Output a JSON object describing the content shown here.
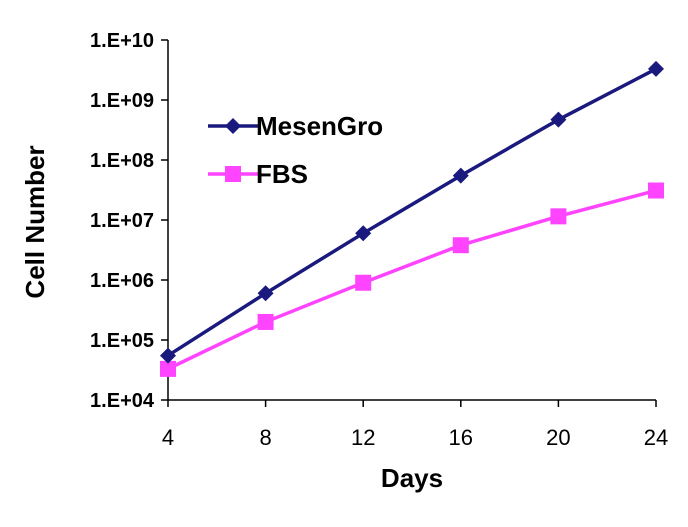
{
  "chart_data": {
    "type": "line",
    "title": "",
    "xlabel": "Days",
    "ylabel": "Cell Number",
    "yscale": "log",
    "xlim": [
      4,
      24
    ],
    "ylim": [
      10000,
      10000000000
    ],
    "x": [
      4,
      8,
      12,
      16,
      20,
      24
    ],
    "x_tick_labels": [
      "4",
      "8",
      "12",
      "16",
      "20",
      "24"
    ],
    "y_tick_values": [
      10000,
      100000,
      1000000,
      10000000,
      100000000,
      1000000000,
      10000000000
    ],
    "y_tick_labels": [
      "1.E+04",
      "1.E+05",
      "1.E+06",
      "1.E+07",
      "1.E+08",
      "1.E+09",
      "1.E+10"
    ],
    "grid": false,
    "legend_position": "upper-left",
    "series": [
      {
        "name": "MesenGro",
        "color": "#1a1a7e",
        "marker": "diamond",
        "values": [
          55000,
          600000,
          6000000,
          55000000,
          470000000,
          3300000000
        ]
      },
      {
        "name": "FBS",
        "color": "#ff44ff",
        "marker": "square",
        "values": [
          33000,
          200000,
          900000,
          3800000,
          11500000,
          31000000
        ]
      }
    ]
  }
}
